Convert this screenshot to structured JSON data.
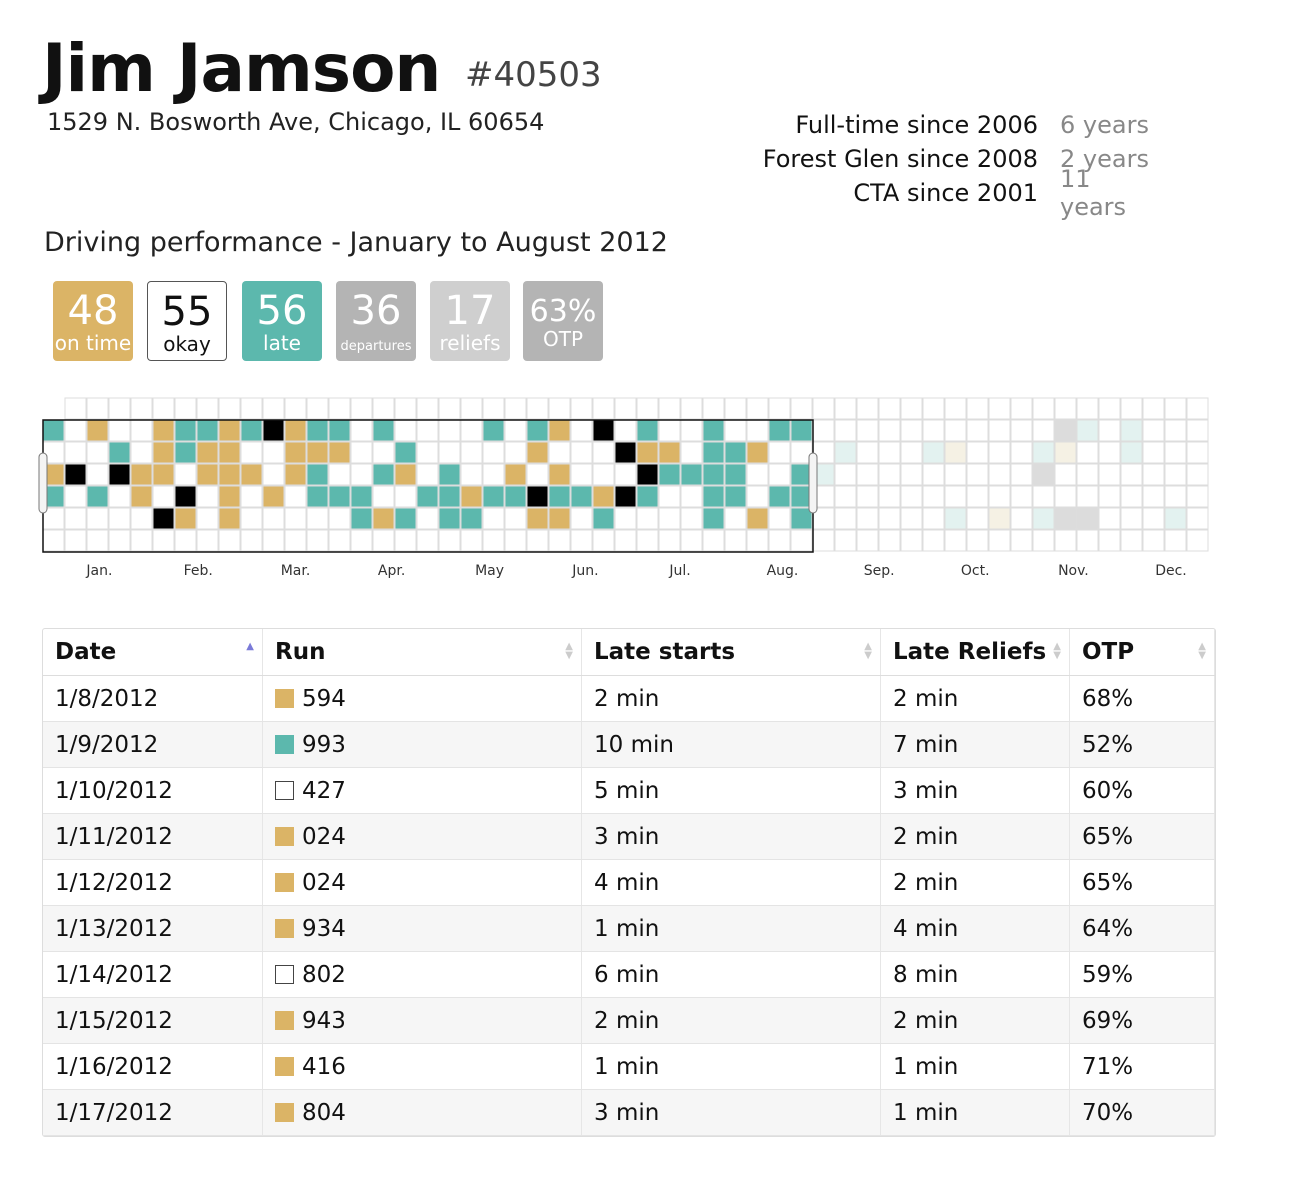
{
  "driver": {
    "name": "Jim Jamson",
    "id": "#40503",
    "address": "1529 N. Bosworth Ave, Chicago, IL 60654"
  },
  "tenure": [
    {
      "label": "Full-time since 2006",
      "years": "6 years"
    },
    {
      "label": "Forest Glen since 2008",
      "years": "2 years"
    },
    {
      "label": "CTA since 2001",
      "years": "11 years"
    }
  ],
  "performance": {
    "title": "Driving performance - January to August 2012",
    "stats": {
      "on_time": {
        "value": "48",
        "label": "on time"
      },
      "okay": {
        "value": "55",
        "label": "okay"
      },
      "late": {
        "value": "56",
        "label": "late"
      },
      "departures": {
        "value": "36",
        "label": "departures"
      },
      "reliefs": {
        "value": "17",
        "label": "reliefs"
      },
      "otp": {
        "value": "63%",
        "label": "OTP"
      }
    }
  },
  "colors": {
    "on_time": "#dbb466",
    "okay": "#ffffff",
    "late": "#5cb8ad",
    "black": "#000000",
    "grid": "#dddddd",
    "future_gray": "#dcdcdc",
    "future_teal": "#e3f2f0",
    "future_beige": "#f5f1e4"
  },
  "calendar": {
    "months": [
      "Jan.",
      "Feb.",
      "Mar.",
      "Apr.",
      "May",
      "Jun.",
      "Jul.",
      "Aug.",
      "Sep.",
      "Oct.",
      "Nov.",
      "Dec."
    ],
    "active_months": 8
  },
  "table": {
    "headers": [
      "Date",
      "Run",
      "Late starts",
      "Late Reliefs",
      "OTP"
    ],
    "sorted_column": "Date",
    "rows": [
      {
        "date": "1/8/2012",
        "status": "on_time",
        "run": "594",
        "late_starts": "2 min",
        "late_reliefs": "2 min",
        "otp": "68%"
      },
      {
        "date": "1/9/2012",
        "status": "late",
        "run": "993",
        "late_starts": "10 min",
        "late_reliefs": "7 min",
        "otp": "52%"
      },
      {
        "date": "1/10/2012",
        "status": "okay",
        "run": "427",
        "late_starts": "5 min",
        "late_reliefs": "3 min",
        "otp": "60%"
      },
      {
        "date": "1/11/2012",
        "status": "on_time",
        "run": "024",
        "late_starts": "3 min",
        "late_reliefs": "2 min",
        "otp": "65%"
      },
      {
        "date": "1/12/2012",
        "status": "on_time",
        "run": "024",
        "late_starts": "4 min",
        "late_reliefs": "2 min",
        "otp": "65%"
      },
      {
        "date": "1/13/2012",
        "status": "on_time",
        "run": "934",
        "late_starts": "1 min",
        "late_reliefs": "4 min",
        "otp": "64%"
      },
      {
        "date": "1/14/2012",
        "status": "okay",
        "run": "802",
        "late_starts": "6 min",
        "late_reliefs": "8 min",
        "otp": "59%"
      },
      {
        "date": "1/15/2012",
        "status": "on_time",
        "run": "943",
        "late_starts": "2 min",
        "late_reliefs": "2 min",
        "otp": "69%"
      },
      {
        "date": "1/16/2012",
        "status": "on_time",
        "run": "416",
        "late_starts": "1 min",
        "late_reliefs": "1 min",
        "otp": "71%"
      },
      {
        "date": "1/17/2012",
        "status": "on_time",
        "run": "804",
        "late_starts": "3 min",
        "late_reliefs": "1 min",
        "otp": "70%"
      }
    ]
  }
}
